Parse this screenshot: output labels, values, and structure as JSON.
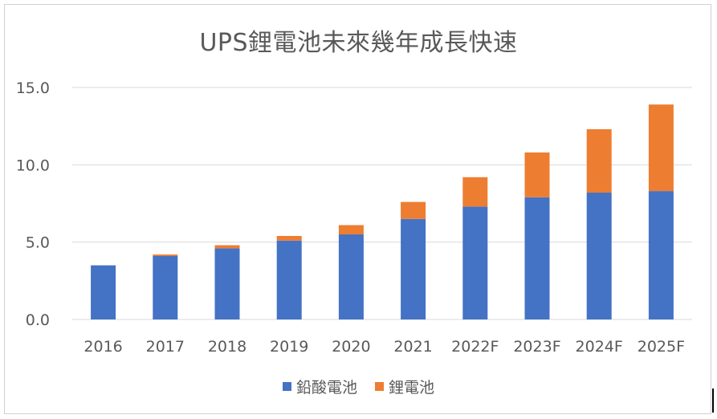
{
  "chart_data": {
    "type": "bar",
    "stacked": true,
    "title": "UPS鋰電池未來幾年成長快速",
    "categories": [
      "2016",
      "2017",
      "2018",
      "2019",
      "2020",
      "2021",
      "2022F",
      "2023F",
      "2024F",
      "2025F"
    ],
    "series": [
      {
        "name": "鉛酸電池",
        "color": "#4472C4",
        "values": [
          3.5,
          4.1,
          4.6,
          5.1,
          5.5,
          6.5,
          7.3,
          7.9,
          8.2,
          8.3
        ]
      },
      {
        "name": "鋰電池",
        "color": "#ED7D31",
        "values": [
          0.0,
          0.1,
          0.2,
          0.3,
          0.6,
          1.1,
          1.9,
          2.9,
          4.1,
          5.6
        ]
      }
    ],
    "yticks": [
      "0.0",
      "5.0",
      "10.0",
      "15.0"
    ],
    "ylim": [
      0,
      15
    ],
    "grid": true,
    "legend": "bottom"
  }
}
